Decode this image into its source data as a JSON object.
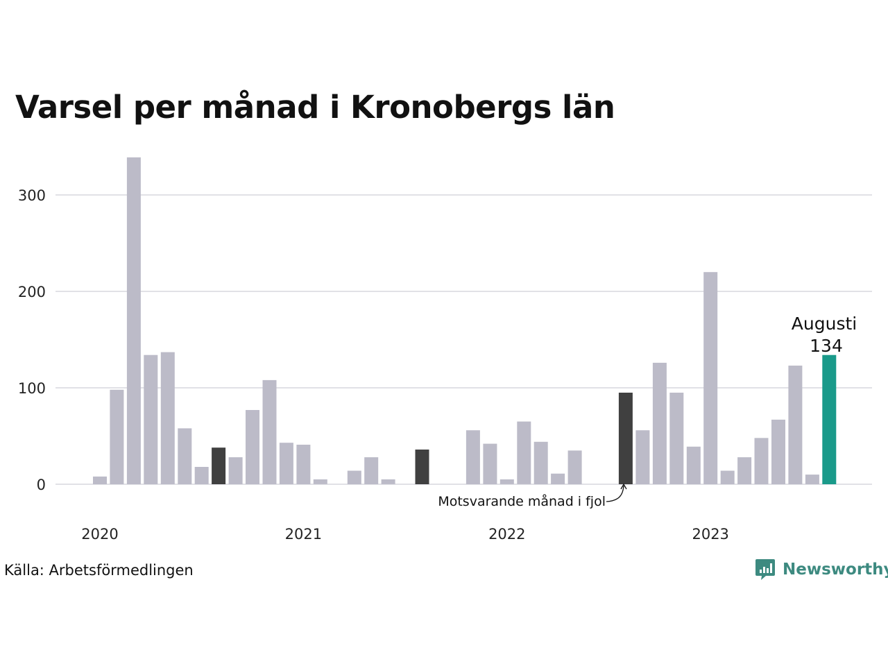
{
  "chart_data": {
    "type": "bar",
    "title": "Varsel per månad i Kronobergs län",
    "xlabel": "",
    "ylabel": "",
    "ylim": [
      0,
      340
    ],
    "yticks": [
      0,
      100,
      200,
      300
    ],
    "grid": true,
    "x_tick_labels": [
      {
        "label": "2020",
        "index": 0
      },
      {
        "label": "2021",
        "index": 12
      },
      {
        "label": "2022",
        "index": 24
      },
      {
        "label": "2023",
        "index": 36
      }
    ],
    "categories": [
      "2020-01",
      "2020-02",
      "2020-03",
      "2020-04",
      "2020-05",
      "2020-06",
      "2020-07",
      "2020-08",
      "2020-09",
      "2020-10",
      "2020-11",
      "2020-12",
      "2021-01",
      "2021-02",
      "2021-03",
      "2021-04",
      "2021-05",
      "2021-06",
      "2021-07",
      "2021-08",
      "2021-09",
      "2021-10",
      "2021-11",
      "2021-12",
      "2022-01",
      "2022-02",
      "2022-03",
      "2022-04",
      "2022-05",
      "2022-06",
      "2022-07",
      "2022-08",
      "2022-09",
      "2022-10",
      "2022-11",
      "2022-12",
      "2023-01",
      "2023-02",
      "2023-03",
      "2023-04",
      "2023-05",
      "2023-06",
      "2023-07",
      "2023-08"
    ],
    "values": [
      8,
      98,
      339,
      134,
      137,
      58,
      18,
      38,
      28,
      77,
      108,
      43,
      41,
      5,
      0,
      14,
      28,
      5,
      0,
      36,
      0,
      0,
      56,
      42,
      5,
      65,
      44,
      11,
      35,
      0,
      0,
      95,
      56,
      126,
      95,
      39,
      220,
      14,
      28,
      48,
      67,
      123,
      10,
      134
    ],
    "highlight_same_month": [
      7,
      19,
      31
    ],
    "current_index": 43,
    "colors": {
      "bar": "#bcbbc8",
      "same_month": "#404040",
      "current": "#1a9a8a",
      "grid": "#e1e1e6"
    },
    "annotations": {
      "current_month": "Augusti",
      "current_value": "134",
      "same_month_note": "Motsvarande månad i fjol"
    }
  },
  "footer": {
    "source": "Källa: Arbetsförmedlingen",
    "brand": "Newsworthy",
    "brand_icon": "chat-bar-chart-icon"
  }
}
